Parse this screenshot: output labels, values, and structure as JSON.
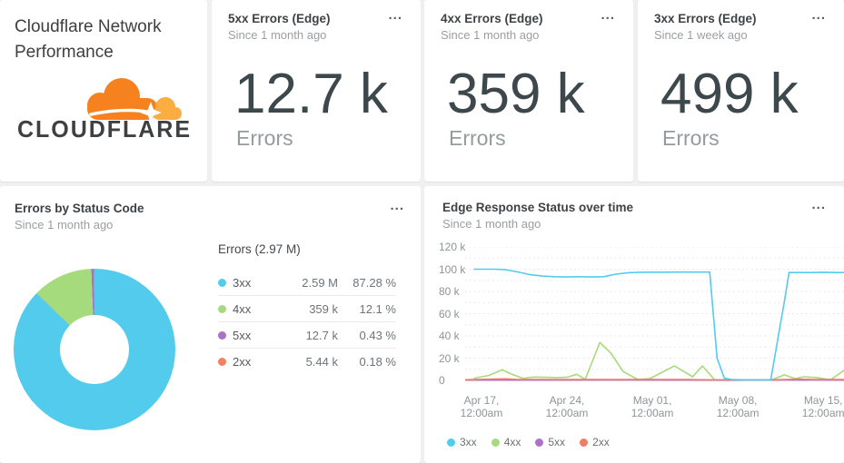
{
  "menu_label": "...",
  "header_card": {
    "title_line1": "Cloudflare Network",
    "title_line2": "Performance",
    "logo_text": "CLOUDFLARE"
  },
  "metric_cards": [
    {
      "title": "5xx Errors (Edge)",
      "subtitle": "Since 1 month ago",
      "value": "12.7 k",
      "unit_label": "Errors"
    },
    {
      "title": "4xx Errors (Edge)",
      "subtitle": "Since 1 month ago",
      "value": "359 k",
      "unit_label": "Errors"
    },
    {
      "title": "3xx Errors (Edge)",
      "subtitle": "Since 1 week ago",
      "value": "499 k",
      "unit_label": "Errors"
    }
  ],
  "pie_card": {
    "title": "Errors by Status Code",
    "subtitle": "Since 1 month ago",
    "table_title": "Errors (2.97 M)"
  },
  "line_card": {
    "title": "Edge Response Status over time",
    "subtitle": "Since 1 month ago"
  },
  "chart_data": [
    {
      "type": "pie",
      "donut": true,
      "title": "Errors by Status Code",
      "period": "Since 1 month ago",
      "total_label": "Errors (2.97 M)",
      "total_display": "2.97 M",
      "slices": [
        {
          "label": "3xx",
          "value": 2590000,
          "value_display": "2.59 M",
          "percent": 87.28,
          "percent_display": "87.28 %",
          "color": "#53CBEC"
        },
        {
          "label": "4xx",
          "value": 359000,
          "value_display": "359 k",
          "percent": 12.1,
          "percent_display": "12.1 %",
          "color": "#A6DB7D"
        },
        {
          "label": "5xx",
          "value": 12700,
          "value_display": "12.7 k",
          "percent": 0.43,
          "percent_display": "0.43 %",
          "color": "#AC71C9"
        },
        {
          "label": "2xx",
          "value": 5440,
          "value_display": "5.44 k",
          "percent": 0.18,
          "percent_display": "0.18 %",
          "color": "#F4805F"
        }
      ]
    },
    {
      "type": "line",
      "title": "Edge Response Status over time",
      "period": "Since 1 month ago",
      "y_unit": "errors (thousands)",
      "y_max_k": 120,
      "grid_step_k": 10,
      "x_domain_days": [
        -1.34,
        29.7
      ],
      "y_ticks": [
        {
          "v": 120,
          "label": "120 k"
        },
        {
          "v": 100,
          "label": "100 k"
        },
        {
          "v": 80,
          "label": "80 k"
        },
        {
          "v": 60,
          "label": "60 k"
        },
        {
          "v": 40,
          "label": "40 k"
        },
        {
          "v": 20,
          "label": "20 k"
        },
        {
          "v": 0,
          "label": "0"
        }
      ],
      "x_ticks": [
        {
          "x": 0,
          "line1": "Apr 17,",
          "line2": "12:00am"
        },
        {
          "x": 7,
          "line1": "Apr 24,",
          "line2": "12:00am"
        },
        {
          "x": 14,
          "line1": "May 01,",
          "line2": "12:00am"
        },
        {
          "x": 21,
          "line1": "May 08,",
          "line2": "12:00am"
        },
        {
          "x": 28,
          "line1": "May 15,",
          "line2": "12:00am"
        }
      ],
      "series": [
        {
          "name": "3xx",
          "color": "#53CBEC",
          "points": [
            [
              -0.6,
              100
            ],
            [
              1,
              100
            ],
            [
              2,
              99.5
            ],
            [
              3,
              97.5
            ],
            [
              4,
              95
            ],
            [
              5,
              93.8
            ],
            [
              6,
              93.2
            ],
            [
              7,
              93
            ],
            [
              8,
              93.2
            ],
            [
              9,
              93
            ],
            [
              10,
              93.2
            ],
            [
              11,
              95.5
            ],
            [
              12,
              96.8
            ],
            [
              13,
              97.2
            ],
            [
              14,
              97.3
            ],
            [
              15,
              97.3
            ],
            [
              16,
              97.4
            ],
            [
              17,
              97.4
            ],
            [
              18.7,
              97.4
            ],
            [
              19.3,
              20
            ],
            [
              19.9,
              2
            ],
            [
              20.5,
              0.8
            ],
            [
              21.5,
              0.5
            ],
            [
              22.5,
              0.5
            ],
            [
              23.7,
              0.5
            ],
            [
              24.4,
              45
            ],
            [
              24.8,
              70
            ],
            [
              25.2,
              97
            ],
            [
              26,
              97
            ],
            [
              27,
              97
            ],
            [
              28,
              97.2
            ],
            [
              29,
              97
            ],
            [
              29.7,
              97
            ]
          ]
        },
        {
          "name": "4xx",
          "color": "#A6DB7D",
          "points": [
            [
              -0.6,
              2
            ],
            [
              0.6,
              4.5
            ],
            [
              1.7,
              9.5
            ],
            [
              2.6,
              5
            ],
            [
              3.4,
              1.8
            ],
            [
              4.3,
              3
            ],
            [
              5.2,
              2.8
            ],
            [
              6.1,
              2.5
            ],
            [
              7,
              2.8
            ],
            [
              7.8,
              5.5
            ],
            [
              8.5,
              1
            ],
            [
              9.7,
              34
            ],
            [
              10.6,
              24.5
            ],
            [
              11.6,
              8
            ],
            [
              12.8,
              0.8
            ],
            [
              13.8,
              1.6
            ],
            [
              15.8,
              13
            ],
            [
              17.3,
              3.3
            ],
            [
              18.1,
              13
            ],
            [
              19.1,
              0.5
            ],
            [
              20.5,
              0.3
            ],
            [
              22,
              0.3
            ],
            [
              23.8,
              0.5
            ],
            [
              24.8,
              5
            ],
            [
              25.7,
              1.6
            ],
            [
              26.4,
              3.3
            ],
            [
              27.5,
              2.5
            ],
            [
              28.6,
              0.5
            ],
            [
              29.7,
              9
            ]
          ]
        },
        {
          "name": "5xx",
          "color": "#AC71C9",
          "points": [
            [
              -1.3,
              0.25
            ],
            [
              5,
              0.25
            ],
            [
              10,
              0.3
            ],
            [
              15,
              0.25
            ],
            [
              20,
              0.2
            ],
            [
              25,
              0.3
            ],
            [
              29.7,
              0.25
            ]
          ]
        },
        {
          "name": "2xx",
          "color": "#F07B66",
          "points": [
            [
              -1.3,
              0.6
            ],
            [
              1,
              1.2
            ],
            [
              2,
              1.4
            ],
            [
              3,
              0.8
            ],
            [
              5,
              0.8
            ],
            [
              7,
              0.7
            ],
            [
              9,
              0.8
            ],
            [
              11,
              0.7
            ],
            [
              13,
              0.7
            ],
            [
              15,
              0.8
            ],
            [
              17,
              0.7
            ],
            [
              19,
              0.5
            ],
            [
              21,
              0.4
            ],
            [
              23,
              0.4
            ],
            [
              25,
              0.8
            ],
            [
              26,
              1.2
            ],
            [
              27,
              0.8
            ],
            [
              29.7,
              0.7
            ]
          ]
        }
      ],
      "draw_order": [
        1,
        2,
        3,
        0
      ],
      "legend_position": "bottom"
    }
  ]
}
